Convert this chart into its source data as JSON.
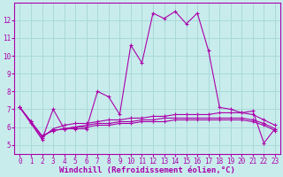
{
  "title": "",
  "xlabel": "Windchill (Refroidissement éolien,°C)",
  "ylabel": "",
  "bg_color": "#c8ecec",
  "line_color": "#aa00aa",
  "grid_color": "#aad8d8",
  "x_values": [
    0,
    1,
    2,
    3,
    4,
    5,
    6,
    7,
    8,
    9,
    10,
    11,
    12,
    13,
    14,
    15,
    16,
    17,
    18,
    19,
    20,
    21,
    22,
    23
  ],
  "series": [
    [
      7.1,
      6.2,
      5.3,
      7.0,
      5.9,
      5.9,
      5.9,
      8.0,
      7.7,
      6.7,
      10.6,
      9.6,
      12.4,
      12.1,
      12.5,
      11.8,
      12.4,
      10.3,
      7.1,
      7.0,
      6.8,
      6.9,
      5.1,
      5.9
    ],
    [
      7.1,
      6.3,
      5.4,
      5.9,
      6.1,
      6.2,
      6.2,
      6.3,
      6.4,
      6.4,
      6.5,
      6.5,
      6.6,
      6.6,
      6.7,
      6.7,
      6.7,
      6.7,
      6.8,
      6.8,
      6.8,
      6.7,
      6.4,
      6.1
    ],
    [
      7.1,
      6.3,
      5.5,
      5.8,
      5.9,
      6.0,
      6.1,
      6.2,
      6.2,
      6.3,
      6.3,
      6.4,
      6.4,
      6.5,
      6.5,
      6.5,
      6.5,
      6.5,
      6.5,
      6.5,
      6.5,
      6.4,
      6.2,
      5.9
    ],
    [
      7.1,
      6.3,
      5.5,
      5.8,
      5.9,
      6.0,
      6.0,
      6.1,
      6.1,
      6.2,
      6.2,
      6.3,
      6.3,
      6.3,
      6.4,
      6.4,
      6.4,
      6.4,
      6.4,
      6.4,
      6.4,
      6.3,
      6.1,
      5.8
    ]
  ],
  "xlim": [
    -0.5,
    23.5
  ],
  "ylim": [
    4.5,
    13.0
  ],
  "yticks": [
    5,
    6,
    7,
    8,
    9,
    10,
    11,
    12
  ],
  "xticks": [
    0,
    1,
    2,
    3,
    4,
    5,
    6,
    7,
    8,
    9,
    10,
    11,
    12,
    13,
    14,
    15,
    16,
    17,
    18,
    19,
    20,
    21,
    22,
    23
  ],
  "tick_fontsize": 5.5,
  "xlabel_fontsize": 6.5
}
